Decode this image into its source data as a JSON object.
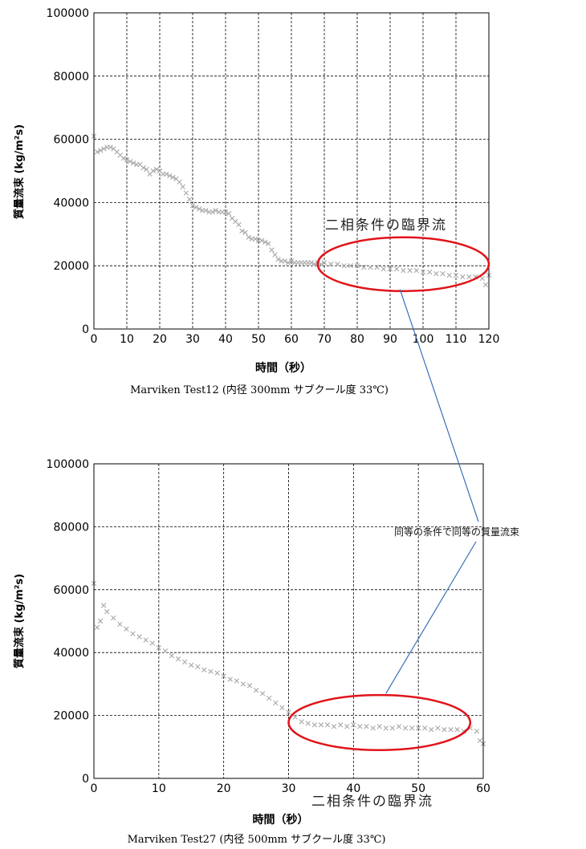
{
  "chart_data": [
    {
      "type": "scatter",
      "caption": "Marviken Test12 (内径 300mm サブクール度 33℃)",
      "xlabel": "時間（秒）",
      "ylabel": "質量流束 (kg/m²s)",
      "xlim": [
        0,
        120
      ],
      "ylim": [
        0,
        100000
      ],
      "xticks": [
        0,
        10,
        20,
        30,
        40,
        50,
        60,
        70,
        80,
        90,
        100,
        110,
        120
      ],
      "yticks": [
        0,
        20000,
        40000,
        60000,
        80000,
        100000
      ],
      "grid": true,
      "series": [
        {
          "marker": "x",
          "color": "#a8a8a8",
          "x": [
            0,
            1,
            2,
            3,
            4,
            5,
            6,
            7,
            8,
            9,
            10,
            11,
            12,
            13,
            14,
            15,
            16,
            17,
            18,
            19,
            20,
            21,
            22,
            23,
            24,
            25,
            26,
            27,
            28,
            29,
            30,
            31,
            32,
            33,
            34,
            35,
            36,
            37,
            38,
            39,
            40,
            41,
            42,
            43,
            44,
            45,
            46,
            47,
            48,
            49,
            50,
            51,
            52,
            53,
            54,
            55,
            56,
            57,
            58,
            59,
            60,
            61,
            62,
            63,
            64,
            65,
            66,
            67,
            68,
            69,
            70,
            72,
            74,
            76,
            78,
            80,
            82,
            84,
            86,
            88,
            90,
            92,
            94,
            96,
            98,
            100,
            102,
            104,
            106,
            108,
            110,
            112,
            114,
            116,
            118,
            119,
            120
          ],
          "y": [
            61000,
            56000,
            56500,
            57000,
            57500,
            57500,
            57000,
            56000,
            55000,
            54000,
            53500,
            53000,
            52500,
            52000,
            52000,
            51000,
            50500,
            49000,
            50000,
            50500,
            50000,
            49000,
            49000,
            48500,
            48000,
            47500,
            46500,
            45000,
            43000,
            41000,
            39000,
            38500,
            38000,
            37500,
            37500,
            37000,
            37000,
            37500,
            37000,
            37000,
            37000,
            36500,
            35000,
            34000,
            33000,
            31000,
            30500,
            29000,
            28500,
            28500,
            28000,
            28000,
            27500,
            27000,
            25000,
            23500,
            22000,
            21500,
            21500,
            21000,
            21500,
            21000,
            21000,
            21000,
            21000,
            21000,
            21000,
            20500,
            21000,
            20500,
            21000,
            20500,
            20500,
            20000,
            20000,
            20000,
            19500,
            19500,
            19500,
            19000,
            19000,
            19000,
            18500,
            18500,
            18500,
            18000,
            18000,
            17500,
            17500,
            17000,
            17000,
            16500,
            16500,
            16500,
            16000,
            14000,
            17000
          ]
        }
      ],
      "annotation": {
        "label": "二相条件の臨界流",
        "ellipse_x_range": [
          68,
          120
        ],
        "ellipse_y_range": [
          12000,
          29000
        ],
        "color": "#e0141a"
      }
    },
    {
      "type": "scatter",
      "caption": "Marviken Test27 (内径 500mm サブクール度 33℃)",
      "xlabel": "時間（秒）",
      "ylabel": "質量流束 (kg/m²s)",
      "xlim": [
        0,
        60
      ],
      "ylim": [
        0,
        100000
      ],
      "xticks": [
        0,
        10,
        20,
        30,
        40,
        50,
        60
      ],
      "yticks": [
        0,
        20000,
        40000,
        60000,
        80000,
        100000
      ],
      "grid": true,
      "series": [
        {
          "marker": "x",
          "color": "#a8a8a8",
          "x": [
            0,
            0.5,
            1,
            1.5,
            2,
            3,
            4,
            5,
            6,
            7,
            8,
            9,
            10,
            11,
            12,
            13,
            14,
            15,
            16,
            17,
            18,
            19,
            20,
            21,
            22,
            23,
            24,
            25,
            26,
            27,
            28,
            29,
            30,
            31,
            32,
            33,
            34,
            35,
            36,
            37,
            38,
            39,
            40,
            41,
            42,
            43,
            44,
            45,
            46,
            47,
            48,
            49,
            50,
            51,
            52,
            53,
            54,
            55,
            56,
            57,
            58,
            59,
            59.5,
            60
          ],
          "y": [
            62000,
            48000,
            50000,
            55000,
            53000,
            51000,
            49000,
            47500,
            46000,
            45000,
            44000,
            43000,
            41500,
            40500,
            39000,
            38000,
            37000,
            36000,
            35500,
            34500,
            34000,
            33500,
            32500,
            31500,
            31000,
            30000,
            29500,
            28000,
            27000,
            25500,
            24000,
            22500,
            21000,
            19500,
            18000,
            17500,
            17000,
            17000,
            17000,
            16500,
            17000,
            16500,
            17000,
            16500,
            16500,
            16000,
            16500,
            16000,
            16000,
            16500,
            16000,
            16000,
            16000,
            16000,
            15500,
            16000,
            15500,
            15500,
            15500,
            15000,
            16000,
            15000,
            12000,
            11000
          ]
        }
      ],
      "annotation": {
        "label": "二相条件の臨界流",
        "ellipse_x_range": [
          30,
          58
        ],
        "ellipse_y_range": [
          9000,
          26500
        ],
        "color": "#e0141a"
      }
    }
  ],
  "connector": {
    "label": "同等の条件で同等の質量流束",
    "color": "#3a6fb5"
  }
}
